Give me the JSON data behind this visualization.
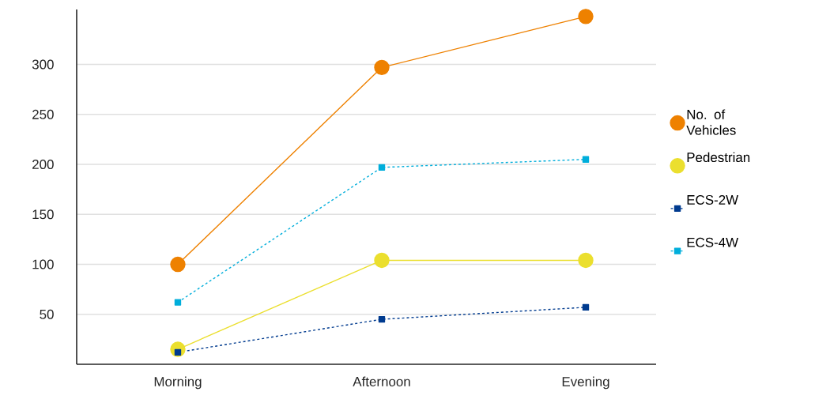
{
  "chart_data": {
    "type": "line",
    "categories": [
      "Morning",
      "Afternoon",
      "Evening"
    ],
    "series": [
      {
        "name": "No. of Vehicles",
        "color": "#ee8100",
        "values": [
          100,
          297,
          348
        ],
        "marker": "circle",
        "line_style": "solid"
      },
      {
        "name": "Pedestrian",
        "color": "#ebdf2e",
        "values": [
          15,
          104,
          104
        ],
        "marker": "circle",
        "line_style": "solid"
      },
      {
        "name": "ECS-2W",
        "color": "#003b8f",
        "values": [
          12,
          45,
          57
        ],
        "marker": "square",
        "line_style": "dashed"
      },
      {
        "name": "ECS-4W",
        "color": "#00aedb",
        "values": [
          62,
          197,
          205
        ],
        "marker": "square",
        "line_style": "dashed"
      }
    ],
    "ylim": [
      0,
      355
    ],
    "yticks": [
      50,
      100,
      150,
      200,
      250,
      300
    ],
    "grid": "y",
    "legend": "right"
  }
}
